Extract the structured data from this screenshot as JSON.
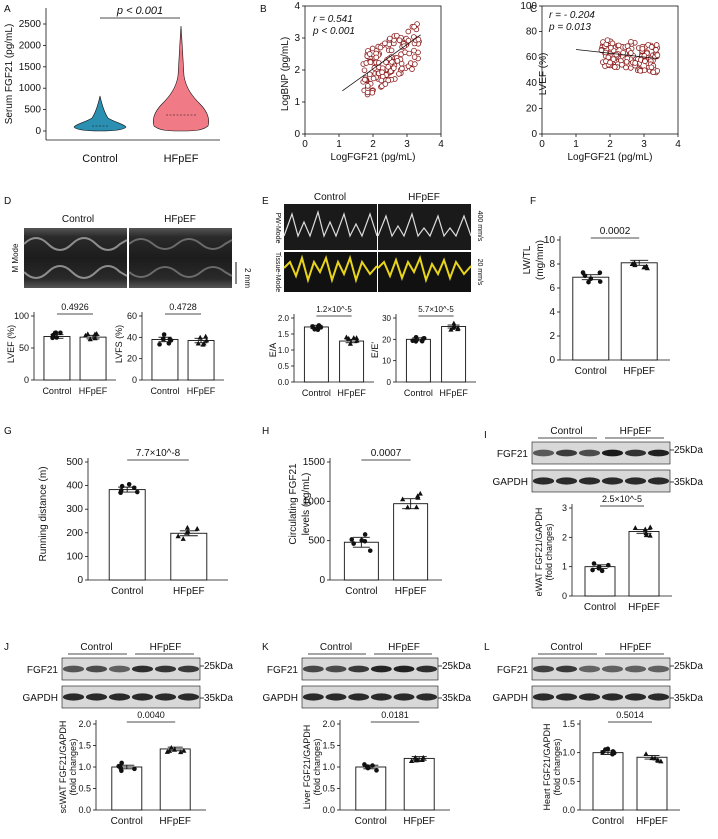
{
  "panels": {
    "A": {
      "letter": "A",
      "ylabel": "Serum FGF21 (pg/mL)",
      "yticks": [
        "0",
        "500",
        "1000",
        "1500",
        "2000",
        "2500"
      ],
      "categories": [
        "Control",
        "HFpEF"
      ],
      "p_label": "p < 0.001",
      "colors": {
        "Control": "#2a8fb0",
        "HFpEF": "#f07b87"
      }
    },
    "B": {
      "letter": "B",
      "ylabel": "LogBNP (pg/mL)",
      "xlabel": "LogFGF21 (pg/mL)",
      "xticks": [
        "0",
        "1",
        "2",
        "3",
        "4"
      ],
      "yticks": [
        "0",
        "1",
        "2",
        "3",
        "4"
      ],
      "stat1": "r = 0.541",
      "stat2": "p < 0.001"
    },
    "C": {
      "letter": "C",
      "ylabel": "LVEF (%)",
      "xlabel": "LogFGF21 (pg/mL)",
      "xticks": [
        "0",
        "1",
        "2",
        "3",
        "4"
      ],
      "yticks": [
        "0",
        "20",
        "40",
        "60",
        "80",
        "100"
      ],
      "stat1": "r = - 0.204",
      "stat2": "p = 0.013"
    },
    "D": {
      "letter": "D",
      "mmode_label": "M Mode",
      "scale_label": "2 mm",
      "groups": [
        "Control",
        "HFpEF"
      ],
      "lvef": {
        "ylabel": "LVEF (%)",
        "p": "0.4926",
        "yticks": [
          "0",
          "50",
          "100"
        ]
      },
      "lvfs": {
        "ylabel": "LVFS (%)",
        "p": "0.4728",
        "yticks": [
          "0",
          "20",
          "40",
          "60"
        ]
      },
      "xcats": [
        "Control",
        "HFpEF"
      ]
    },
    "E": {
      "letter": "E",
      "groups": [
        "Control",
        "HFpEF"
      ],
      "pw_label": "PW-Mode",
      "tissue_label": "Tissue-Mode",
      "scale_top": "400 mm/s",
      "scale_bottom": "20 mm/s",
      "ea": {
        "ylabel": "E/A",
        "p": "1.2×10^-5",
        "yticks": [
          "0.0",
          "0.5",
          "1.0",
          "1.5",
          "2.0"
        ]
      },
      "eeprime": {
        "ylabel": "E/E'",
        "p": "5.7×10^-5",
        "yticks": [
          "0",
          "10",
          "20",
          "30"
        ]
      },
      "xcats": [
        "Control",
        "HFpEF"
      ]
    },
    "F": {
      "letter": "F",
      "ylabel1": "LW/TL",
      "ylabel2": "(mg/mm)",
      "p": "0.0002",
      "yticks": [
        "0",
        "2",
        "4",
        "6",
        "8",
        "10"
      ],
      "xcats": [
        "Control",
        "HFpEF"
      ]
    },
    "G": {
      "letter": "G",
      "ylabel": "Running distance (m)",
      "p": "7.7×10^-8",
      "yticks": [
        "0",
        "100",
        "200",
        "300",
        "400",
        "500"
      ],
      "xcats": [
        "Control",
        "HFpEF"
      ]
    },
    "H": {
      "letter": "H",
      "ylabel1": "Circulating FGF21",
      "ylabel2": "levels (pg/mL)",
      "p": "0.0007",
      "yticks": [
        "0",
        "500",
        "1000",
        "1500"
      ],
      "xcats": [
        "Control",
        "HFpEF"
      ]
    },
    "I": {
      "letter": "I",
      "groups": [
        "Control",
        "HFpEF"
      ],
      "band1": "FGF21",
      "band2": "GAPDH",
      "kda1": "25kDa",
      "kda2": "35kDa",
      "ylabel1": "eWAT FGF21/GAPDH",
      "ylabel2": "(fold changes)",
      "p": "2.5×10^-5",
      "yticks": [
        "0",
        "1",
        "2",
        "3"
      ],
      "xcats": [
        "Control",
        "HFpEF"
      ]
    },
    "J": {
      "letter": "J",
      "groups": [
        "Control",
        "HFpEF"
      ],
      "band1": "FGF21",
      "band2": "GAPDH",
      "kda1": "25kDa",
      "kda2": "35kDa",
      "ylabel1": "scWAT FGF21/GAPDH",
      "ylabel2": "(fold changes)",
      "p": "0.0040",
      "yticks": [
        "0.0",
        "0.5",
        "1.0",
        "1.5",
        "2.0"
      ],
      "xcats": [
        "Control",
        "HFpEF"
      ]
    },
    "K": {
      "letter": "K",
      "groups": [
        "Control",
        "HFpEF"
      ],
      "band1": "FGF21",
      "band2": "GAPDH",
      "kda1": "25kDa",
      "kda2": "35kDa",
      "ylabel1": "Liver FGF21/GAPDH",
      "ylabel2": "(fold changes)",
      "p": "0.0181",
      "yticks": [
        "0.0",
        "0.5",
        "1.0",
        "1.5",
        "2.0"
      ],
      "xcats": [
        "Control",
        "HFpEF"
      ]
    },
    "L": {
      "letter": "L",
      "groups": [
        "Control",
        "HFpEF"
      ],
      "band1": "FGF21",
      "band2": "GAPDH",
      "kda1": "25kDa",
      "kda2": "35kDa",
      "ylabel1": "Heart FGF21/GAPDH",
      "ylabel2": "(fold changes)",
      "p": "0.5014",
      "yticks": [
        "0.0",
        "0.5",
        "1.0",
        "1.5"
      ],
      "xcats": [
        "Control",
        "HFpEF"
      ]
    }
  },
  "chart_data": [
    {
      "panel": "A",
      "type": "violin",
      "title": "",
      "ylabel": "Serum FGF21 (pg/mL)",
      "categories": [
        "Control",
        "HFpEF"
      ],
      "median": [
        150,
        330
      ],
      "max": [
        750,
        2400
      ],
      "ylim": [
        -100,
        2600
      ]
    },
    {
      "panel": "B",
      "type": "scatter",
      "xlabel": "LogFGF21 (pg/mL)",
      "ylabel": "LogBNP (pg/mL)",
      "xlim": [
        0,
        4
      ],
      "ylim": [
        0,
        4
      ],
      "fit": {
        "x": [
          1.1,
          3.4
        ],
        "y": [
          1.35,
          3.1
        ]
      },
      "r": 0.541
    },
    {
      "panel": "C",
      "type": "scatter",
      "xlabel": "LogFGF21 (pg/mL)",
      "ylabel": "LVEF (%)",
      "xlim": [
        0,
        4
      ],
      "ylim": [
        0,
        100
      ],
      "fit": {
        "x": [
          1.0,
          3.4
        ],
        "y": [
          66,
          59
        ]
      },
      "r": -0.204
    },
    {
      "panel": "D-LVEF",
      "type": "bar",
      "categories": [
        "Control",
        "HFpEF"
      ],
      "values": [
        68,
        67
      ],
      "ylim": [
        0,
        100
      ]
    },
    {
      "panel": "D-LVFS",
      "type": "bar",
      "categories": [
        "Control",
        "HFpEF"
      ],
      "values": [
        38,
        37
      ],
      "ylim": [
        0,
        60
      ]
    },
    {
      "panel": "E-E/A",
      "type": "bar",
      "categories": [
        "Control",
        "HFpEF"
      ],
      "values": [
        1.72,
        1.28
      ],
      "ylim": [
        0,
        2
      ]
    },
    {
      "panel": "E-E/E'",
      "type": "bar",
      "categories": [
        "Control",
        "HFpEF"
      ],
      "values": [
        20,
        26
      ],
      "ylim": [
        0,
        30
      ]
    },
    {
      "panel": "F",
      "type": "bar",
      "categories": [
        "Control",
        "HFpEF"
      ],
      "values": [
        6.9,
        8.1
      ],
      "ylim": [
        0,
        10
      ]
    },
    {
      "panel": "G",
      "type": "bar",
      "categories": [
        "Control",
        "HFpEF"
      ],
      "values": [
        383,
        198
      ],
      "ylim": [
        0,
        500
      ]
    },
    {
      "panel": "H",
      "type": "bar",
      "categories": [
        "Control",
        "HFpEF"
      ],
      "values": [
        480,
        970
      ],
      "ylim": [
        0,
        1500
      ]
    },
    {
      "panel": "I",
      "type": "bar",
      "categories": [
        "Control",
        "HFpEF"
      ],
      "values": [
        1.0,
        2.2
      ],
      "ylim": [
        0,
        3
      ]
    },
    {
      "panel": "J",
      "type": "bar",
      "categories": [
        "Control",
        "HFpEF"
      ],
      "values": [
        1.0,
        1.42
      ],
      "ylim": [
        0,
        2
      ]
    },
    {
      "panel": "K",
      "type": "bar",
      "categories": [
        "Control",
        "HFpEF"
      ],
      "values": [
        1.0,
        1.2
      ],
      "ylim": [
        0,
        2
      ]
    },
    {
      "panel": "L",
      "type": "bar",
      "categories": [
        "Control",
        "HFpEF"
      ],
      "values": [
        1.0,
        0.92
      ],
      "ylim": [
        0,
        1.5
      ]
    }
  ]
}
